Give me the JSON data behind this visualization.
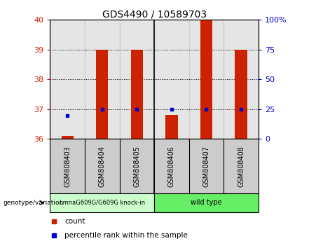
{
  "title": "GDS4490 / 10589703",
  "samples": [
    "GSM808403",
    "GSM808404",
    "GSM808405",
    "GSM808406",
    "GSM808407",
    "GSM808408"
  ],
  "bar_values": [
    36.1,
    39.0,
    39.0,
    36.8,
    40.0,
    39.0
  ],
  "bar_base": 36.0,
  "percentile_values": [
    36.78,
    37.0,
    37.0,
    37.0,
    37.0,
    37.0
  ],
  "ylim_left": [
    36,
    40
  ],
  "yticks_left": [
    36,
    37,
    38,
    39,
    40
  ],
  "yticks_right": [
    0,
    25,
    50,
    75,
    100
  ],
  "ytick_labels_right": [
    "0",
    "25",
    "50",
    "75",
    "100%"
  ],
  "bar_color": "#cc2200",
  "marker_color": "#0000cc",
  "group1_label": "LmnaG609G/G609G knock-in",
  "group2_label": "wild type",
  "group1_color": "#ccffcc",
  "group2_color": "#66ee66",
  "group_row_label": "genotype/variation",
  "legend_count_label": "count",
  "legend_percentile_label": "percentile rank within the sample",
  "bar_width": 0.35,
  "background_sample": "#cccccc",
  "title_fontsize": 10,
  "tick_fontsize": 8,
  "label_fontsize": 7
}
